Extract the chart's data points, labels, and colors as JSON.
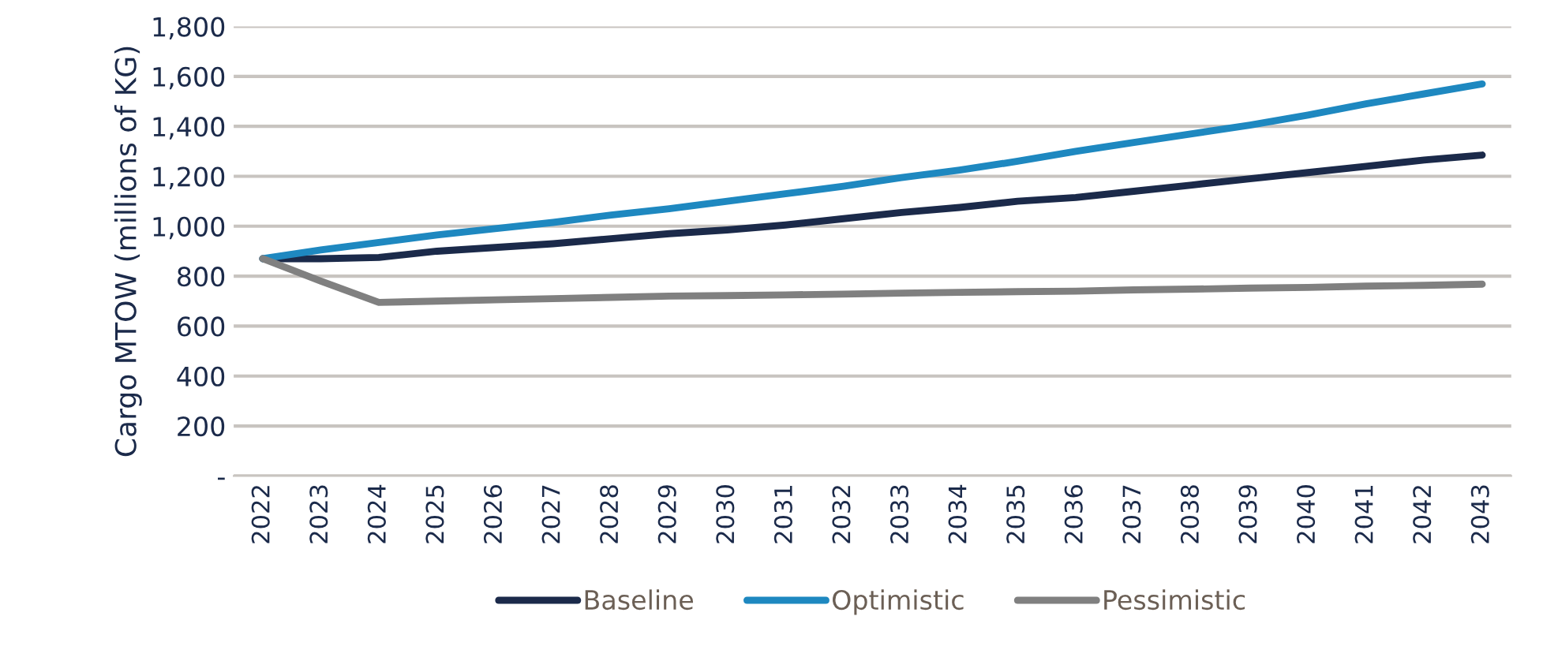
{
  "chart_data": {
    "type": "line",
    "ylabel": "Cargo MTOW (millions of KG)",
    "categories": [
      "2022",
      "2023",
      "2024",
      "2025",
      "2026",
      "2027",
      "2028",
      "2029",
      "2030",
      "2031",
      "2032",
      "2033",
      "2034",
      "2035",
      "2036",
      "2037",
      "2038",
      "2039",
      "2040",
      "2041",
      "2042",
      "2043"
    ],
    "series": [
      {
        "name": "Baseline",
        "color": "#1b2a4a",
        "values": [
          870,
          870,
          875,
          900,
          915,
          930,
          950,
          970,
          985,
          1005,
          1030,
          1055,
          1075,
          1100,
          1115,
          1140,
          1165,
          1190,
          1215,
          1240,
          1265,
          1285
        ]
      },
      {
        "name": "Optimistic",
        "color": "#1e88c0",
        "values": [
          870,
          905,
          935,
          965,
          990,
          1015,
          1045,
          1070,
          1100,
          1130,
          1160,
          1195,
          1225,
          1260,
          1300,
          1335,
          1370,
          1405,
          1445,
          1490,
          1530,
          1570
        ]
      },
      {
        "name": "Pessimistic",
        "color": "#808080",
        "values": [
          870,
          780,
          695,
          700,
          705,
          710,
          715,
          720,
          722,
          725,
          728,
          732,
          735,
          738,
          740,
          745,
          748,
          752,
          755,
          760,
          763,
          768
        ]
      }
    ],
    "ylim": [
      0,
      1800
    ],
    "yticks": [
      {
        "value": 0,
        "label": "-"
      },
      {
        "value": 200,
        "label": "200"
      },
      {
        "value": 400,
        "label": "400"
      },
      {
        "value": 600,
        "label": "600"
      },
      {
        "value": 800,
        "label": "800"
      },
      {
        "value": 1000,
        "label": "1,000"
      },
      {
        "value": 1200,
        "label": "1,200"
      },
      {
        "value": 1400,
        "label": "1,400"
      },
      {
        "value": 1600,
        "label": "1,600"
      },
      {
        "value": 1800,
        "label": "1,800"
      }
    ],
    "grid": "y",
    "legend": "bottom",
    "marker": "none",
    "line_style": "solid"
  }
}
